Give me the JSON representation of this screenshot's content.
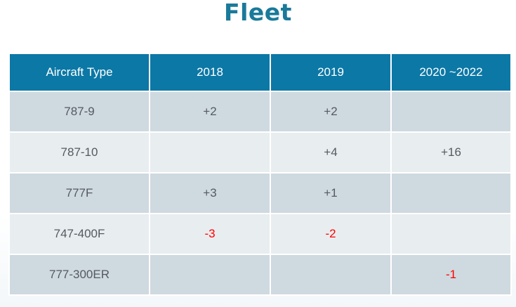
{
  "title": "Fleet",
  "table": {
    "headers": [
      "Aircraft Type",
      "2018",
      "2019",
      "2020 ~2022"
    ],
    "rows": [
      [
        "787-9",
        "+2",
        "+2",
        ""
      ],
      [
        "787-10",
        "",
        "+4",
        "+16"
      ],
      [
        "777F",
        "+3",
        "+1",
        ""
      ],
      [
        "747-400F",
        "-3",
        "-2",
        ""
      ],
      [
        "777-300ER",
        "",
        "",
        "-1"
      ]
    ]
  },
  "colors": {
    "title": "#1a7a9a",
    "header_bg": "#0c78a6",
    "row_dark": "#cfd9e0",
    "row_light": "#e8edf0",
    "negative": "#ff0000"
  }
}
